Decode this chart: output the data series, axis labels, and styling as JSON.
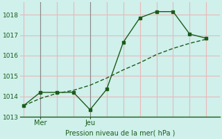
{
  "xlabel": "Pression niveau de la mer( hPa )",
  "bg_color": "#cff0eb",
  "grid_color_h": "#e8b8b8",
  "grid_color_v": "#e8b8b8",
  "line_color": "#1a5c1a",
  "line1_x": [
    0,
    1,
    2,
    3,
    4,
    5,
    6,
    7,
    8,
    9,
    10,
    11
  ],
  "line1_y": [
    1013.55,
    1013.9,
    1014.15,
    1014.3,
    1014.55,
    1014.9,
    1015.3,
    1015.65,
    1016.05,
    1016.35,
    1016.6,
    1016.8
  ],
  "line2_x": [
    0,
    1,
    2,
    3,
    4,
    5,
    6,
    7,
    8,
    9,
    10,
    11
  ],
  "line2_y": [
    1013.55,
    1014.2,
    1014.2,
    1014.2,
    1013.35,
    1014.35,
    1016.65,
    1017.85,
    1018.15,
    1018.15,
    1017.05,
    1016.85
  ],
  "ylim": [
    1013.0,
    1018.6
  ],
  "yticks": [
    1013,
    1014,
    1015,
    1016,
    1017,
    1018
  ],
  "xlim": [
    -0.2,
    11.8
  ],
  "mer_x": 1.0,
  "jeu_x": 4.0,
  "fig_bg": "#cff0eb",
  "marker_indices2": [
    0,
    1,
    2,
    3,
    4,
    5,
    6,
    7,
    8,
    9,
    10,
    11
  ]
}
